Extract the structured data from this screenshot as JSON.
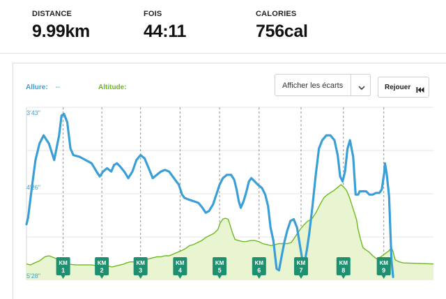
{
  "stats": [
    {
      "label": "DISTANCE",
      "value": "9.99km"
    },
    {
      "label": "FOIS",
      "value": "44:11"
    },
    {
      "label": "CALORIES",
      "value": "756cal"
    }
  ],
  "legend": {
    "pace_label": "Allure:",
    "pace_value": "--",
    "altitude_label": "Altitude:"
  },
  "controls": {
    "dropdown_value": "Afficher les écarts",
    "replay_label": "Rejouer"
  },
  "colors": {
    "pace": "#3a9fd6",
    "altitude_line": "#6cb91f",
    "altitude_fill": "#e8f5d0",
    "marker": "#1e8f6f"
  },
  "icons": {
    "dropdown": "chevron-down-icon",
    "replay": "rewind-to-start-icon"
  },
  "chart_data": {
    "type": "line",
    "y_ticks": [
      "3'43\"",
      "4'26\"",
      "5'28\""
    ],
    "km_markers": [
      {
        "top": "KM",
        "num": "1"
      },
      {
        "top": "KM",
        "num": "2"
      },
      {
        "top": "KM",
        "num": "3"
      },
      {
        "top": "KM",
        "num": "4"
      },
      {
        "top": "KM",
        "num": "5"
      },
      {
        "top": "KM",
        "num": "6"
      },
      {
        "top": "KM",
        "num": "7"
      },
      {
        "top": "KM",
        "num": "8"
      },
      {
        "top": "KM",
        "num": "9"
      }
    ],
    "km_distance": [
      0.9,
      1.85,
      2.8,
      3.77,
      4.74,
      5.71,
      6.74,
      7.78,
      8.77
    ],
    "x_range_km": [
      0,
      9.99
    ],
    "pace_range_sec": [
      223,
      328
    ],
    "pace_sec": [
      [
        0.0,
        294
      ],
      [
        0.04,
        290
      ],
      [
        0.12,
        274
      ],
      [
        0.22,
        255
      ],
      [
        0.32,
        245
      ],
      [
        0.42,
        240
      ],
      [
        0.55,
        245
      ],
      [
        0.68,
        255
      ],
      [
        0.8,
        240
      ],
      [
        0.86,
        228
      ],
      [
        0.92,
        227
      ],
      [
        1.0,
        232
      ],
      [
        1.08,
        248
      ],
      [
        1.15,
        252
      ],
      [
        1.3,
        253
      ],
      [
        1.45,
        255
      ],
      [
        1.6,
        257
      ],
      [
        1.72,
        262
      ],
      [
        1.8,
        265
      ],
      [
        1.88,
        262
      ],
      [
        1.98,
        260
      ],
      [
        2.08,
        262
      ],
      [
        2.15,
        258
      ],
      [
        2.22,
        257
      ],
      [
        2.3,
        259
      ],
      [
        2.4,
        262
      ],
      [
        2.5,
        266
      ],
      [
        2.6,
        262
      ],
      [
        2.7,
        255
      ],
      [
        2.8,
        252
      ],
      [
        2.9,
        254
      ],
      [
        3.0,
        260
      ],
      [
        3.1,
        266
      ],
      [
        3.2,
        264
      ],
      [
        3.3,
        262
      ],
      [
        3.4,
        261
      ],
      [
        3.5,
        262
      ],
      [
        3.62,
        266
      ],
      [
        3.74,
        270
      ],
      [
        3.82,
        276
      ],
      [
        3.88,
        278
      ],
      [
        3.98,
        279
      ],
      [
        4.1,
        280
      ],
      [
        4.22,
        281
      ],
      [
        4.32,
        284
      ],
      [
        4.4,
        287
      ],
      [
        4.48,
        286
      ],
      [
        4.58,
        282
      ],
      [
        4.66,
        276
      ],
      [
        4.74,
        270
      ],
      [
        4.82,
        266
      ],
      [
        4.92,
        264
      ],
      [
        5.02,
        264
      ],
      [
        5.1,
        267
      ],
      [
        5.16,
        273
      ],
      [
        5.21,
        280
      ],
      [
        5.26,
        284
      ],
      [
        5.33,
        280
      ],
      [
        5.4,
        274
      ],
      [
        5.46,
        268
      ],
      [
        5.52,
        266
      ],
      [
        5.6,
        268
      ],
      [
        5.68,
        270
      ],
      [
        5.78,
        272
      ],
      [
        5.86,
        276
      ],
      [
        5.93,
        283
      ],
      [
        5.99,
        296
      ],
      [
        6.06,
        304
      ],
      [
        6.14,
        321
      ],
      [
        6.2,
        322
      ],
      [
        6.26,
        314
      ],
      [
        6.33,
        305
      ],
      [
        6.4,
        298
      ],
      [
        6.48,
        292
      ],
      [
        6.56,
        291
      ],
      [
        6.64,
        296
      ],
      [
        6.7,
        305
      ],
      [
        6.76,
        314
      ],
      [
        6.82,
        318
      ],
      [
        6.88,
        310
      ],
      [
        6.94,
        300
      ],
      [
        7.02,
        283
      ],
      [
        7.1,
        264
      ],
      [
        7.18,
        248
      ],
      [
        7.26,
        243
      ],
      [
        7.36,
        240
      ],
      [
        7.46,
        240
      ],
      [
        7.56,
        243
      ],
      [
        7.64,
        252
      ],
      [
        7.7,
        265
      ],
      [
        7.76,
        268
      ],
      [
        7.82,
        262
      ],
      [
        7.88,
        248
      ],
      [
        7.94,
        243
      ],
      [
        8.02,
        253
      ],
      [
        8.08,
        276
      ],
      [
        8.14,
        276
      ],
      [
        8.18,
        274
      ],
      [
        8.26,
        274
      ],
      [
        8.34,
        274
      ],
      [
        8.42,
        276
      ],
      [
        8.5,
        276
      ],
      [
        8.58,
        275
      ],
      [
        8.66,
        275
      ],
      [
        8.72,
        273
      ],
      [
        8.78,
        263
      ],
      [
        8.8,
        257
      ],
      [
        8.84,
        263
      ],
      [
        8.9,
        277
      ],
      [
        8.96,
        316
      ],
      [
        9.0,
        326
      ]
    ],
    "altitude_m": [
      [
        0.0,
        6
      ],
      [
        0.1,
        5
      ],
      [
        0.2,
        7
      ],
      [
        0.32,
        9
      ],
      [
        0.45,
        13
      ],
      [
        0.55,
        14
      ],
      [
        0.68,
        12
      ],
      [
        0.8,
        10
      ],
      [
        0.9,
        8
      ],
      [
        1.0,
        6
      ],
      [
        1.2,
        5
      ],
      [
        1.4,
        5
      ],
      [
        1.6,
        5
      ],
      [
        1.8,
        4
      ],
      [
        2.0,
        4
      ],
      [
        2.1,
        3
      ],
      [
        2.2,
        4
      ],
      [
        2.3,
        5
      ],
      [
        2.4,
        6
      ],
      [
        2.45,
        7
      ],
      [
        2.55,
        8
      ],
      [
        2.65,
        8
      ],
      [
        2.8,
        9
      ],
      [
        2.9,
        10
      ],
      [
        3.0,
        11
      ],
      [
        3.1,
        12
      ],
      [
        3.2,
        13
      ],
      [
        3.3,
        13
      ],
      [
        3.4,
        14
      ],
      [
        3.5,
        14
      ],
      [
        3.62,
        16
      ],
      [
        3.74,
        18
      ],
      [
        3.8,
        19
      ],
      [
        3.9,
        21
      ],
      [
        4.0,
        24
      ],
      [
        4.1,
        25
      ],
      [
        4.2,
        27
      ],
      [
        4.3,
        29
      ],
      [
        4.4,
        32
      ],
      [
        4.5,
        34
      ],
      [
        4.6,
        36
      ],
      [
        4.7,
        40
      ],
      [
        4.75,
        46
      ],
      [
        4.82,
        50
      ],
      [
        4.88,
        51
      ],
      [
        4.95,
        50
      ],
      [
        5.0,
        44
      ],
      [
        5.06,
        36
      ],
      [
        5.12,
        30
      ],
      [
        5.2,
        29
      ],
      [
        5.3,
        28
      ],
      [
        5.4,
        28
      ],
      [
        5.5,
        29
      ],
      [
        5.6,
        29
      ],
      [
        5.7,
        28
      ],
      [
        5.8,
        26
      ],
      [
        5.9,
        25
      ],
      [
        6.0,
        24
      ],
      [
        6.1,
        25
      ],
      [
        6.2,
        26
      ],
      [
        6.3,
        26
      ],
      [
        6.4,
        26
      ],
      [
        6.5,
        27
      ],
      [
        6.6,
        33
      ],
      [
        6.7,
        39
      ],
      [
        6.8,
        44
      ],
      [
        6.9,
        48
      ],
      [
        7.0,
        50
      ],
      [
        7.1,
        56
      ],
      [
        7.2,
        64
      ],
      [
        7.3,
        71
      ],
      [
        7.38,
        74
      ],
      [
        7.46,
        76
      ],
      [
        7.54,
        78
      ],
      [
        7.6,
        80
      ],
      [
        7.66,
        82
      ],
      [
        7.72,
        84
      ],
      [
        7.78,
        82
      ],
      [
        7.86,
        78
      ],
      [
        7.94,
        70
      ],
      [
        8.02,
        60
      ],
      [
        8.1,
        50
      ],
      [
        8.14,
        40
      ],
      [
        8.2,
        30
      ],
      [
        8.26,
        22
      ],
      [
        8.32,
        20
      ],
      [
        8.4,
        18
      ],
      [
        8.5,
        14
      ],
      [
        8.6,
        11
      ],
      [
        8.7,
        13
      ],
      [
        8.8,
        16
      ],
      [
        8.9,
        19
      ],
      [
        8.96,
        22
      ],
      [
        9.0,
        18
      ],
      [
        9.05,
        10
      ],
      [
        9.15,
        8
      ],
      [
        9.25,
        7
      ],
      [
        9.99,
        6
      ]
    ],
    "altitude_range_m": [
      -10,
      160
    ]
  }
}
